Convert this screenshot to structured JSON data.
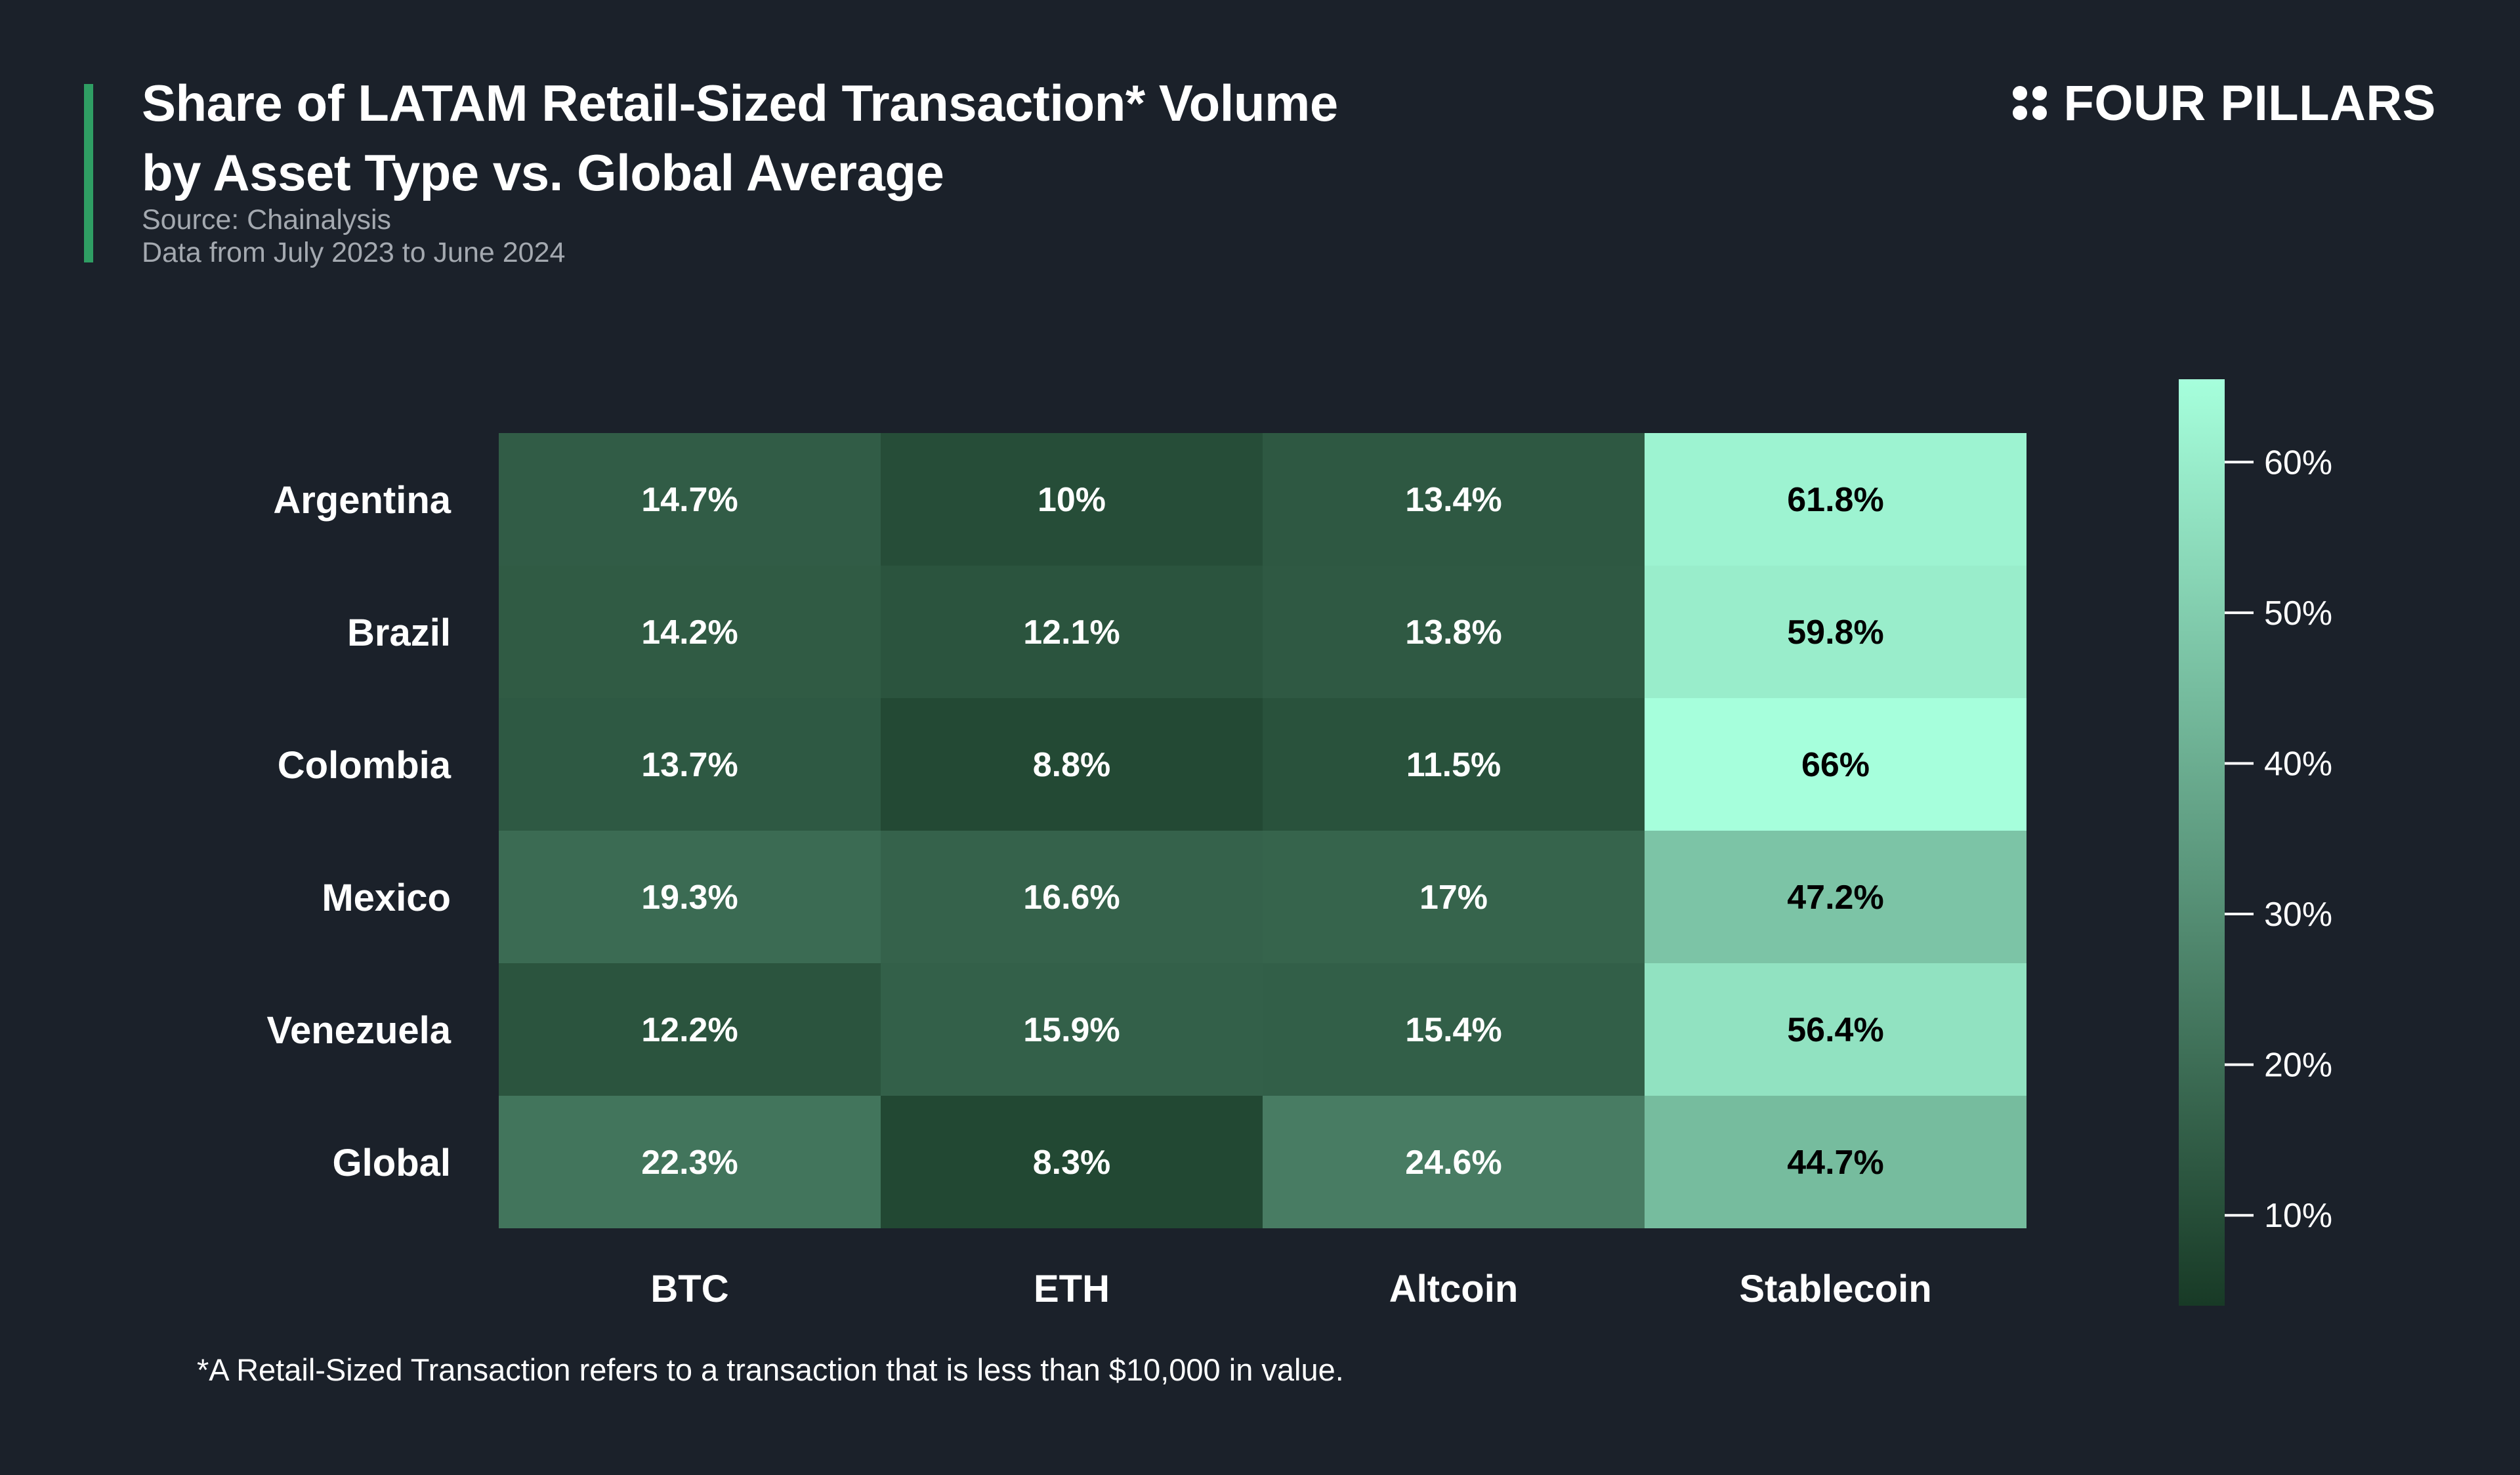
{
  "header": {
    "title_line1": "Share of LATAM Retail-Sized Transaction* Volume",
    "title_line2": "by Asset Type vs. Global Average",
    "source": "Source: Chainalysis",
    "date_range": "Data from July 2023 to June 2024",
    "accent_color": "#2f9e63"
  },
  "brand": {
    "name": "FOUR PILLARS",
    "icon": "four-dots-logo-icon"
  },
  "footnote": "*A Retail-Sized Transaction refers to a transaction that is less than $10,000 in value.",
  "chart_data": {
    "type": "heatmap",
    "rows": [
      "Argentina",
      "Brazil",
      "Colombia",
      "Mexico",
      "Venezuela",
      "Global"
    ],
    "columns": [
      "BTC",
      "ETH",
      "Altcoin",
      "Stablecoin"
    ],
    "values": [
      [
        14.7,
        10,
        13.4,
        61.8
      ],
      [
        14.2,
        12.1,
        13.8,
        59.8
      ],
      [
        13.7,
        8.8,
        11.5,
        66
      ],
      [
        19.3,
        16.6,
        17,
        47.2
      ],
      [
        12.2,
        15.9,
        15.4,
        56.4
      ],
      [
        22.3,
        8.3,
        24.6,
        44.7
      ]
    ],
    "labels": [
      [
        "14.7%",
        "10%",
        "13.4%",
        "61.8%"
      ],
      [
        "14.2%",
        "12.1%",
        "13.8%",
        "59.8%"
      ],
      [
        "13.7%",
        "8.8%",
        "11.5%",
        "66%"
      ],
      [
        "19.3%",
        "16.6%",
        "17%",
        "47.2%"
      ],
      [
        "12.2%",
        "15.9%",
        "15.4%",
        "56.4%"
      ],
      [
        "22.3%",
        "8.3%",
        "24.6%",
        "44.7%"
      ]
    ],
    "colorbar": {
      "min": 4,
      "max": 65.5,
      "ticks": [
        10,
        20,
        30,
        40,
        50,
        60
      ],
      "tick_labels": [
        "10%",
        "20%",
        "30%",
        "40%",
        "50%",
        "60%"
      ],
      "color_low": "#183a26",
      "color_high": "#a6ffdc"
    },
    "dark_text_threshold": 40,
    "text_color_light": "#ffffff",
    "text_color_dark": "#000000"
  }
}
